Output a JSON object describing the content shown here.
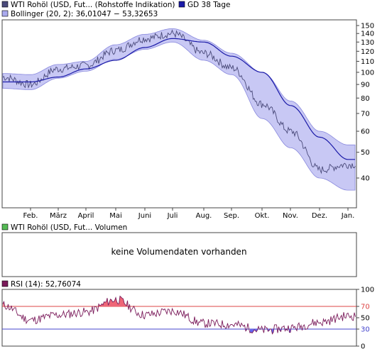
{
  "panels": {
    "price": {
      "legend": [
        {
          "label": "WTI Rohöl (USD, Fut... (Rohstoffe Indikation)",
          "color": "#4a4a7a"
        },
        {
          "label": "GD 38 Tage",
          "color": "#1a1aa8"
        },
        {
          "label": "Bollinger (20, 2): 36,01047 − 53,32653",
          "color": "#aaaaee"
        }
      ]
    },
    "volume": {
      "legend": {
        "label": "WTI Rohöl (USD, Fut... Volumen",
        "color": "#55bb55"
      },
      "empty_message": "keine Volumendaten vorhanden"
    },
    "rsi": {
      "legend": {
        "label": "RSI (14): 52,76074",
        "color": "#7a1a5a"
      }
    }
  },
  "chart_data": [
    {
      "type": "line",
      "title": "",
      "x_ticks": [
        "Feb.",
        "März",
        "April",
        "Mai",
        "Juni",
        "Juli",
        "Aug.",
        "Sep.",
        "Okt.",
        "Nov.",
        "Dez.",
        "Jan."
      ],
      "y_scale": "log",
      "y_ticks": [
        40,
        50,
        60,
        70,
        80,
        90,
        100,
        110,
        120,
        130,
        140,
        150
      ],
      "ylim": [
        33,
        158
      ],
      "grid": false,
      "series": [
        {
          "name": "WTI Rohöl (USD, Fut... (Rohstoffe Indikation)",
          "color": "#4a4a7a",
          "x": [
            "Jan.",
            "Feb.",
            "März",
            "April",
            "Mai",
            "Juni",
            "Juli",
            "Aug.",
            "Sep.",
            "Okt.",
            "Nov.",
            "Dez.",
            "Jan."
          ],
          "values": [
            96,
            90,
            103,
            106,
            121,
            134,
            140,
            118,
            104,
            76,
            60,
            43,
            45
          ]
        },
        {
          "name": "GD 38 Tage",
          "color": "#1a1aa8",
          "x": [
            "Jan.",
            "Feb.",
            "März",
            "April",
            "Mai",
            "Juni",
            "Juli",
            "Aug.",
            "Sep.",
            "Okt.",
            "Nov.",
            "Dez.",
            "Jan."
          ],
          "values": [
            92,
            92,
            96,
            103,
            111,
            124,
            134,
            130,
            115,
            100,
            75,
            57,
            47
          ]
        },
        {
          "name": "Bollinger (20, 2): 36,01047 − 53,32653",
          "color": "#aaaaee",
          "kind": "band",
          "x": [
            "Jan.",
            "Feb.",
            "März",
            "April",
            "Mai",
            "Juni",
            "Juli",
            "Aug.",
            "Sep.",
            "Okt.",
            "Nov.",
            "Dez.",
            "Jan."
          ],
          "upper": [
            99,
            98,
            107,
            110,
            127,
            139,
            146,
            132,
            118,
            100,
            78,
            60,
            53.3
          ],
          "lower": [
            87,
            86,
            95,
            101,
            112,
            122,
            130,
            111,
            98,
            67,
            52,
            40,
            36.0
          ]
        }
      ]
    },
    {
      "type": "line",
      "title": "",
      "y_ticks": [
        0,
        30,
        50,
        70,
        100
      ],
      "ylim": [
        0,
        100
      ],
      "reference_lines": [
        {
          "value": 70,
          "color": "#dd4444"
        },
        {
          "value": 30,
          "color": "#4444cc"
        }
      ],
      "series": [
        {
          "name": "RSI (14): 52,76074",
          "color": "#7a1a5a",
          "x": [
            "Jan.",
            "Feb.",
            "März",
            "April",
            "Mai",
            "Juni",
            "Juli",
            "Aug.",
            "Sep.",
            "Okt.",
            "Nov.",
            "Dez.",
            "Jan."
          ],
          "values": [
            72,
            46,
            55,
            60,
            82,
            55,
            62,
            40,
            38,
            28,
            32,
            42,
            53
          ]
        }
      ]
    }
  ]
}
